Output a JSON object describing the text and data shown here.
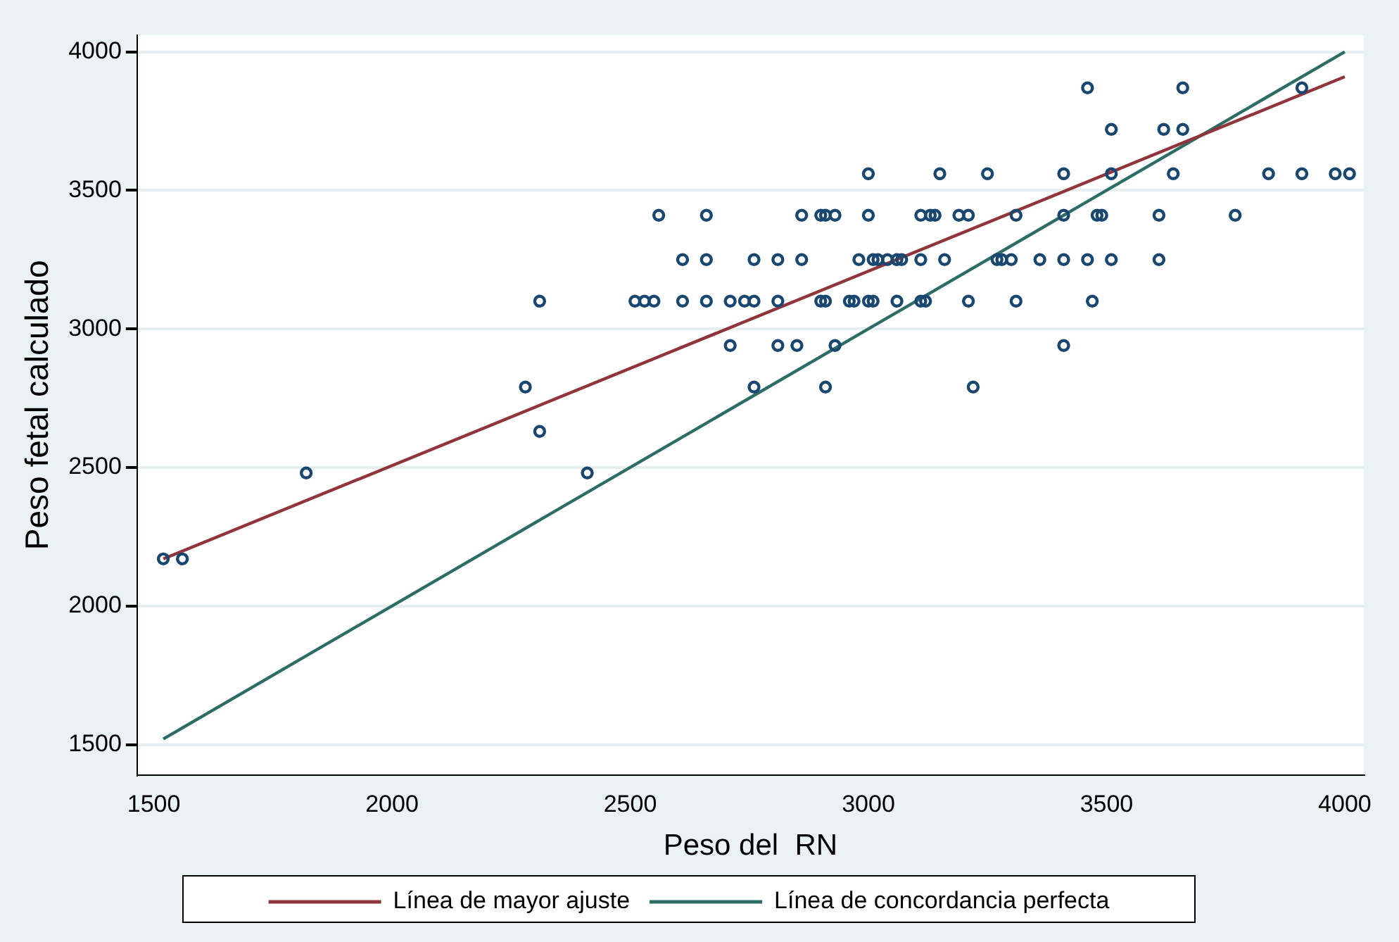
{
  "chart_data": {
    "type": "scatter",
    "xlabel": "Peso del  RN",
    "ylabel": "Peso fetal calculado",
    "xlim": [
      1465,
      4040
    ],
    "ylim": [
      1390,
      4060
    ],
    "xticks": [
      1500,
      2000,
      2500,
      3000,
      3500,
      4000
    ],
    "yticks": [
      1500,
      2000,
      2500,
      3000,
      3500,
      4000
    ],
    "grid": "y",
    "legend": "bottom",
    "series": [
      {
        "marker": "circle",
        "color": "#1a476f",
        "x": [
          1520,
          1560,
          1820,
          2410,
          2310,
          2280,
          2760,
          2910,
          3220,
          2310,
          2510,
          2530,
          2550,
          2610,
          2660,
          2710,
          2740,
          2760,
          2810,
          2900,
          2910,
          2960,
          2970,
          3000,
          3010,
          3060,
          3110,
          3120,
          3210,
          3310,
          3470,
          2710,
          2810,
          2850,
          2930,
          3410,
          2610,
          2660,
          2760,
          2810,
          2860,
          2980,
          3010,
          3020,
          3040,
          3060,
          3070,
          3110,
          3160,
          3270,
          3280,
          3300,
          3360,
          3410,
          3460,
          3510,
          3610,
          2560,
          2660,
          2860,
          2900,
          2910,
          2930,
          3000,
          3110,
          3130,
          3140,
          3190,
          3210,
          3310,
          3410,
          3480,
          3490,
          3610,
          3770,
          3000,
          3150,
          3250,
          3410,
          3510,
          3640,
          3840,
          3910,
          3980,
          4010,
          3510,
          3620,
          3660,
          3460,
          3660,
          3910
        ],
        "values": [
          2170,
          2170,
          2480,
          2480,
          2630,
          2790,
          2790,
          2790,
          2790,
          3100,
          3100,
          3100,
          3100,
          3100,
          3100,
          3100,
          3100,
          3100,
          3100,
          3100,
          3100,
          3100,
          3100,
          3100,
          3100,
          3100,
          3100,
          3100,
          3100,
          3100,
          3100,
          2940,
          2940,
          2940,
          2940,
          2940,
          3250,
          3250,
          3250,
          3250,
          3250,
          3250,
          3250,
          3250,
          3250,
          3250,
          3250,
          3250,
          3250,
          3250,
          3250,
          3250,
          3250,
          3250,
          3250,
          3250,
          3250,
          3410,
          3410,
          3410,
          3410,
          3410,
          3410,
          3410,
          3410,
          3410,
          3410,
          3410,
          3410,
          3410,
          3410,
          3410,
          3410,
          3410,
          3410,
          3560,
          3560,
          3560,
          3560,
          3560,
          3560,
          3560,
          3560,
          3560,
          3560,
          3720,
          3720,
          3720,
          3870,
          3870,
          3870
        ]
      },
      {
        "type": "line",
        "marker": "none",
        "name": "Línea de mayor ajuste",
        "color": "#90353b",
        "x": [
          1520,
          4000
        ],
        "values": [
          2170,
          3910
        ]
      },
      {
        "type": "line",
        "marker": "none",
        "name": "Línea de concordancia perfecta",
        "color": "#2d6d66",
        "x": [
          1520,
          4000
        ],
        "values": [
          1520,
          4000
        ]
      }
    ]
  }
}
